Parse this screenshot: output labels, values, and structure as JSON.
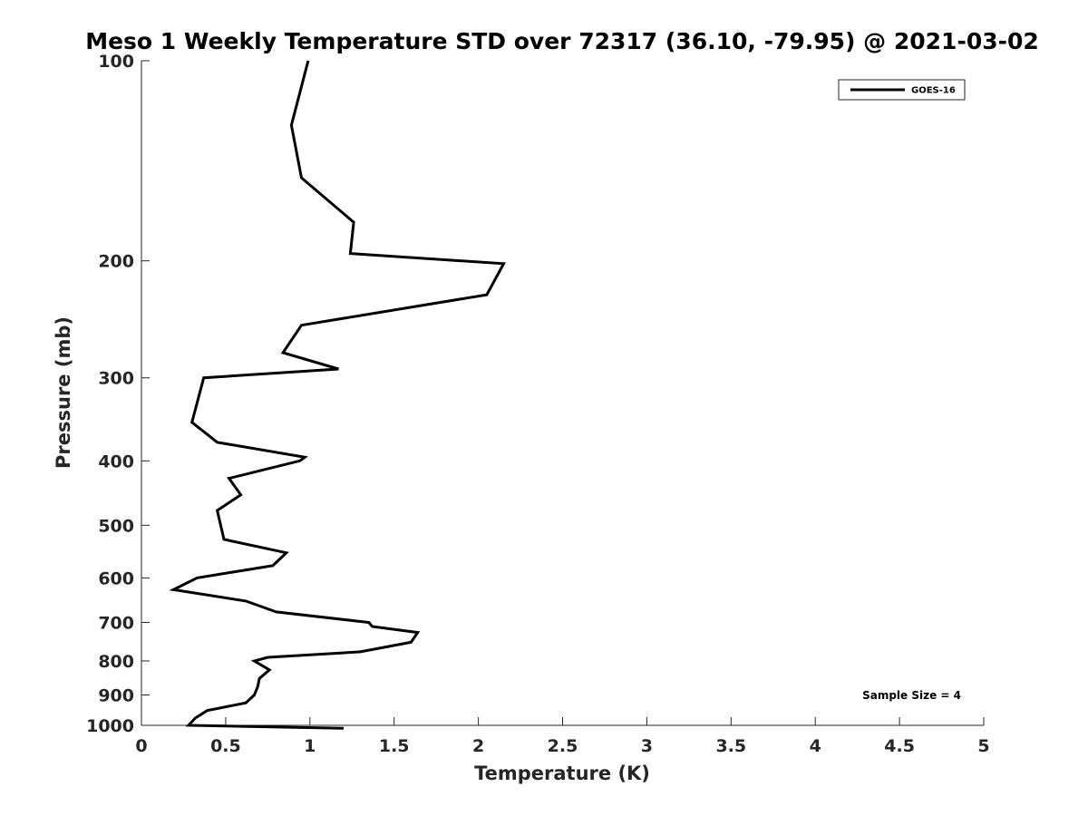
{
  "chart_data": {
    "type": "line",
    "title": "Meso 1 Weekly Temperature STD over 72317 (36.10, -79.95) @ 2021-03-02",
    "xlabel": "Temperature (K)",
    "ylabel": "Pressure (mb)",
    "xlim": [
      0,
      5
    ],
    "ylim": [
      100,
      1000
    ],
    "yscale": "log",
    "y_reversed": true,
    "grid": false,
    "legend_position": "top-right",
    "x_ticks": [
      "0",
      "0.5",
      "1",
      "1.5",
      "2",
      "2.5",
      "3",
      "3.5",
      "4",
      "4.5",
      "5"
    ],
    "y_ticks": [
      "100",
      "200",
      "300",
      "400",
      "500",
      "600",
      "700",
      "800",
      "900",
      "1000"
    ],
    "series": [
      {
        "name": "GOES-16",
        "color": "#000000",
        "x": [
          0.99,
          0.89,
          0.95,
          1.26,
          1.24,
          2.15,
          2.05,
          0.95,
          0.84,
          1.17,
          0.37,
          0.3,
          0.45,
          0.97,
          0.94,
          0.52,
          0.59,
          0.45,
          0.49,
          0.86,
          0.78,
          0.33,
          0.19,
          0.62,
          0.8,
          1.35,
          1.37,
          1.64,
          1.6,
          1.3,
          0.75,
          0.67,
          0.76,
          0.7,
          0.69,
          0.67,
          0.62,
          0.39,
          0.32,
          0.28,
          1.2
        ],
        "y": [
          100,
          125,
          150,
          175,
          195,
          202,
          225,
          250,
          275,
          291,
          300,
          350,
          375,
          395,
          400,
          425,
          450,
          475,
          525,
          550,
          575,
          600,
          625,
          650,
          675,
          700,
          710,
          725,
          750,
          775,
          790,
          800,
          825,
          850,
          875,
          900,
          925,
          950,
          975,
          1000,
          1010
        ]
      }
    ],
    "annotations": [
      "Sample Size = 4"
    ]
  }
}
